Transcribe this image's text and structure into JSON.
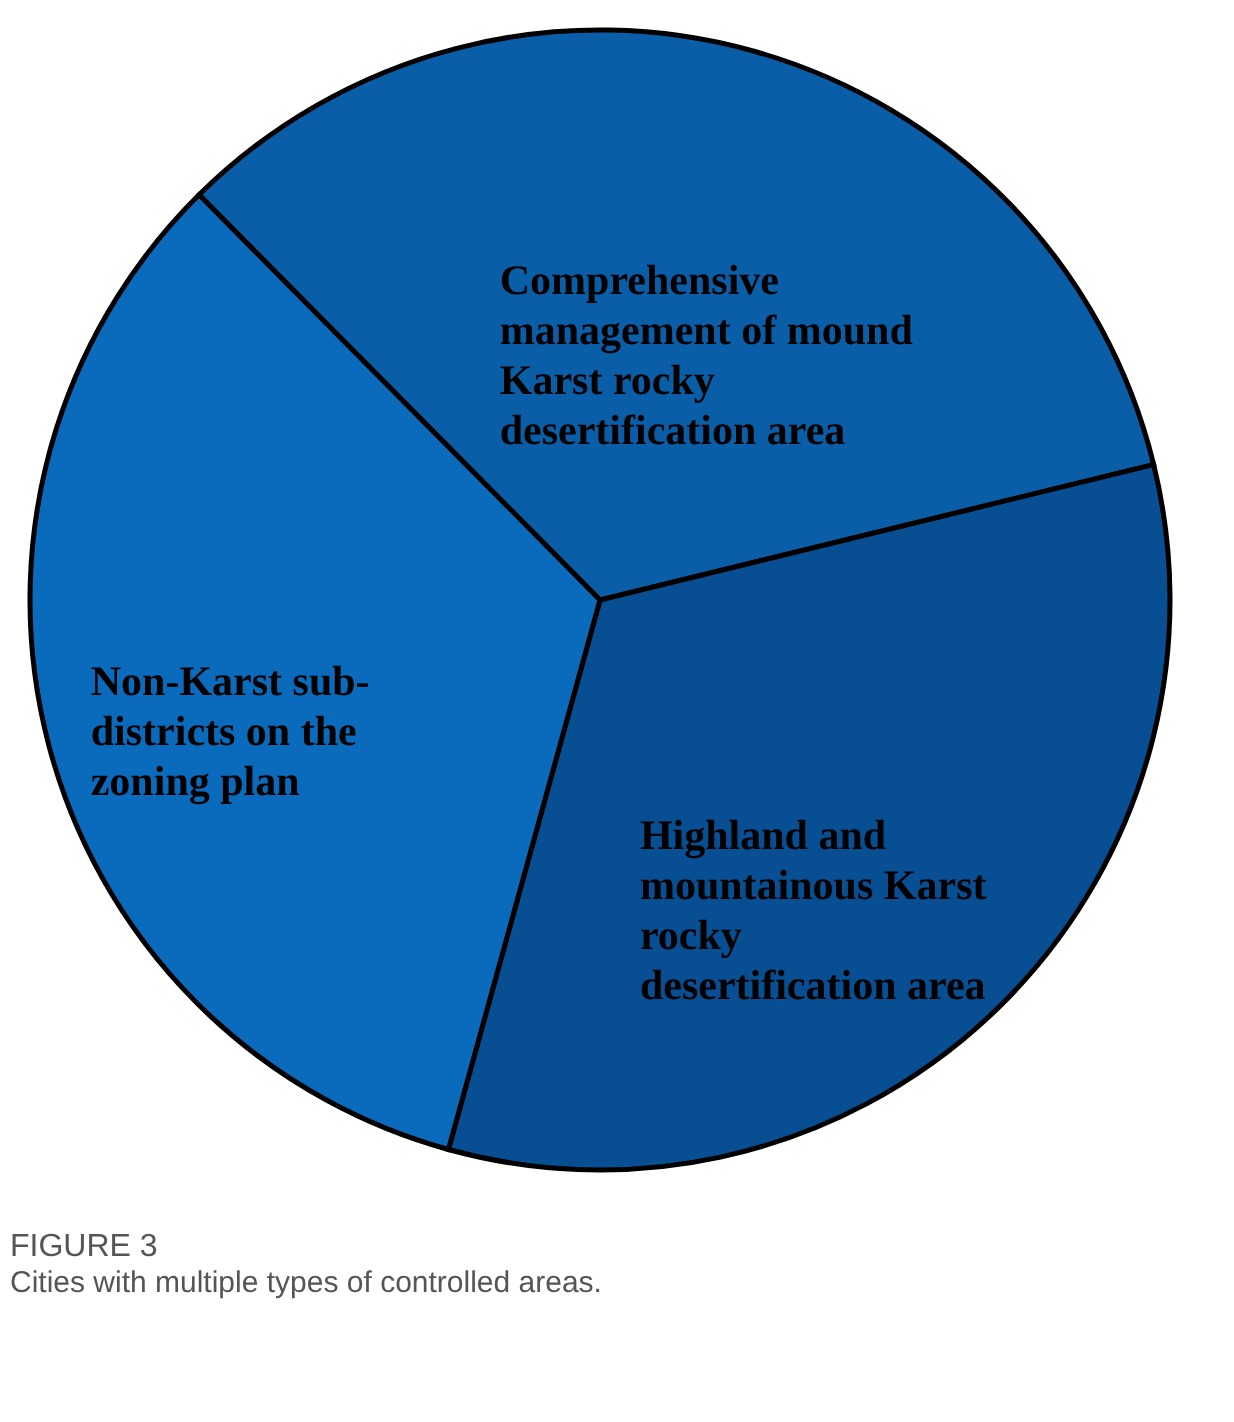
{
  "chart_data": {
    "type": "pie",
    "title": "FIGURE 3",
    "subtitle": "Cities with multiple types of controlled areas.",
    "categories": [
      "Comprehensive management of mound Karst rocky desertification area",
      "Highland and mountainous Karst rocky desertification area",
      "Non-Karst sub-districts on the zoning plan"
    ],
    "values": [
      33.6,
      33.1,
      33.3
    ],
    "colors": [
      "#0a5ea8",
      "#084e92",
      "#0a6bbd"
    ],
    "legend": false
  }
}
